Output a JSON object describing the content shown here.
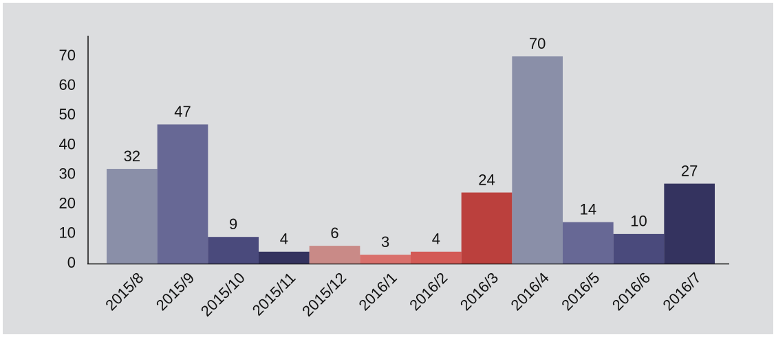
{
  "chart_data": {
    "type": "bar",
    "categories": [
      "2015/8",
      "2015/9",
      "2015/10",
      "2015/11",
      "2015/12",
      "2016/1",
      "2016/2",
      "2016/3",
      "2016/4",
      "2016/5",
      "2016/6",
      "2016/7"
    ],
    "values": [
      32,
      47,
      9,
      4,
      6,
      3,
      4,
      24,
      70,
      14,
      10,
      27
    ],
    "colors": [
      "#8a8fa8",
      "#676895",
      "#4a4a7c",
      "#34335f",
      "#c98a87",
      "#d9706c",
      "#d35a56",
      "#bb403d",
      "#8a8fa8",
      "#676895",
      "#4a4a7c",
      "#34335f"
    ],
    "ylim": [
      0,
      77
    ],
    "yticks": [
      0,
      10,
      20,
      30,
      40,
      50,
      60,
      70
    ],
    "grid": false
  }
}
